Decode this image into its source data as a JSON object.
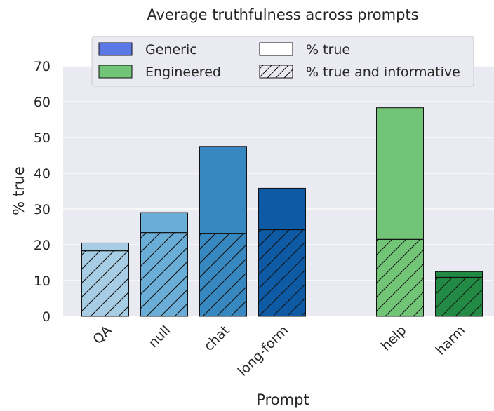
{
  "chart_data": {
    "type": "bar",
    "title": "Average truthfulness across prompts",
    "xlabel": "Prompt",
    "ylabel": "% true",
    "ylim": [
      0,
      70
    ],
    "yticks": [
      0,
      10,
      20,
      30,
      40,
      50,
      60,
      70
    ],
    "grid": true,
    "legend_position": "top-center",
    "categories": [
      "QA",
      "null",
      "chat",
      "long-form",
      "help",
      "harm"
    ],
    "groups": [
      "Generic",
      "Generic",
      "Generic",
      "Generic",
      "Engineered",
      "Engineered"
    ],
    "series": [
      {
        "name": "% true",
        "values": [
          20.5,
          29.0,
          47.5,
          35.8,
          58.3,
          12.5
        ]
      },
      {
        "name": "% true and informative",
        "values": [
          18.3,
          23.4,
          23.2,
          24.2,
          21.5,
          10.9
        ]
      }
    ],
    "bar_colors": [
      "#a6cde3",
      "#6aaed7",
      "#3787c0",
      "#0e5aa5",
      "#72c476",
      "#228a44"
    ],
    "legend": [
      {
        "label": "Generic",
        "swatch": "#5a79e6"
      },
      {
        "label": "Engineered",
        "swatch": "#72c476"
      },
      {
        "label": "% true",
        "swatch": "#ffffff"
      },
      {
        "label": "% true and informative",
        "swatch": "hatched"
      }
    ]
  }
}
